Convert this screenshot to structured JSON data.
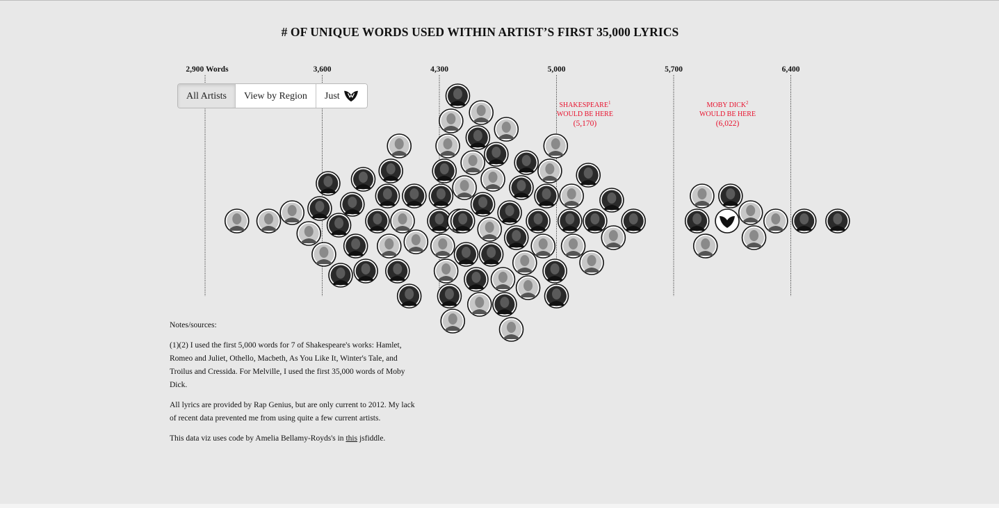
{
  "title": "# OF UNIQUE WORDS USED WITHIN ARTIST’S FIRST 35,000 LYRICS",
  "buttons": {
    "all_artists": "All Artists",
    "view_by_region": "View by Region",
    "just": "Just",
    "just_icon": "wu-tang-logo-icon"
  },
  "notes": {
    "heading": "Notes/sources:",
    "p1": "(1)(2) I used the first 5,000 words for 7 of Shakespeare's works: Hamlet, Romeo and Juliet, Othello, Macbeth, As You Like It, Winter's Tale, and Troilus and Cressida. For Melville, I used the first 35,000 words of Moby Dick.",
    "p2": "All lyrics are provided by Rap Genius, but are only current to 2012. My lack of recent data prevented me from using quite a few current artists.",
    "p3_before": "This data viz uses code by Amelia Bellamy-Royds's in ",
    "p3_link": "this",
    "p3_after": " jsfiddle."
  },
  "colors": {
    "background": "#e8e8e8",
    "annotation": "#e8112d",
    "avatar_dark": "#2a2a2a",
    "avatar_light": "#c8c8c8"
  },
  "chart_data": {
    "type": "scatter",
    "subtype": "beeswarm",
    "title": "# OF UNIQUE WORDS USED WITHIN ARTIST’S FIRST 35,000 LYRICS",
    "xlabel": "",
    "ylabel": "",
    "xlim": [
      2900,
      6970
    ],
    "grid": true,
    "ticks": [
      {
        "value": 2900,
        "label": "2,900 Words"
      },
      {
        "value": 3600,
        "label": "3,600"
      },
      {
        "value": 4300,
        "label": "4,300"
      },
      {
        "value": 5000,
        "label": "5,000"
      },
      {
        "value": 5700,
        "label": "5,700"
      },
      {
        "value": 6400,
        "label": "6,400"
      }
    ],
    "reference_markers": [
      {
        "line1": "SHAKESPEARE",
        "sup": "1",
        "line2": "WOULD BE HERE",
        "value_label": "(5,170)",
        "value": 5170
      },
      {
        "line1": "MOBY DICK",
        "sup": "2",
        "line2": "WOULD BE HERE",
        "value_label": "(6,022)",
        "value": 6022
      }
    ],
    "points": [
      {
        "x": 3090,
        "tone": "l"
      },
      {
        "x": 3280,
        "tone": "l"
      },
      {
        "x": 3420,
        "tone": "l"
      },
      {
        "x": 3520,
        "tone": "l"
      },
      {
        "x": 3585,
        "tone": "d"
      },
      {
        "x": 3610,
        "tone": "l"
      },
      {
        "x": 3635,
        "tone": "d"
      },
      {
        "x": 3700,
        "tone": "d"
      },
      {
        "x": 3710,
        "tone": "d"
      },
      {
        "x": 3780,
        "tone": "d"
      },
      {
        "x": 3800,
        "tone": "d"
      },
      {
        "x": 3845,
        "tone": "d"
      },
      {
        "x": 3860,
        "tone": "d"
      },
      {
        "x": 3930,
        "tone": "d"
      },
      {
        "x": 3990,
        "tone": "d"
      },
      {
        "x": 4000,
        "tone": "l"
      },
      {
        "x": 4010,
        "tone": "d"
      },
      {
        "x": 4050,
        "tone": "d"
      },
      {
        "x": 4060,
        "tone": "l"
      },
      {
        "x": 4080,
        "tone": "l"
      },
      {
        "x": 4120,
        "tone": "d"
      },
      {
        "x": 4150,
        "tone": "d"
      },
      {
        "x": 4160,
        "tone": "l"
      },
      {
        "x": 4300,
        "tone": "d"
      },
      {
        "x": 4310,
        "tone": "d"
      },
      {
        "x": 4320,
        "tone": "l"
      },
      {
        "x": 4330,
        "tone": "d"
      },
      {
        "x": 4340,
        "tone": "l"
      },
      {
        "x": 4350,
        "tone": "l"
      },
      {
        "x": 4360,
        "tone": "d"
      },
      {
        "x": 4370,
        "tone": "l"
      },
      {
        "x": 4380,
        "tone": "l"
      },
      {
        "x": 4410,
        "tone": "d"
      },
      {
        "x": 4420,
        "tone": "l"
      },
      {
        "x": 4440,
        "tone": "d"
      },
      {
        "x": 4450,
        "tone": "l"
      },
      {
        "x": 4460,
        "tone": "d"
      },
      {
        "x": 4500,
        "tone": "l"
      },
      {
        "x": 4520,
        "tone": "d"
      },
      {
        "x": 4530,
        "tone": "d"
      },
      {
        "x": 4540,
        "tone": "l"
      },
      {
        "x": 4550,
        "tone": "l"
      },
      {
        "x": 4560,
        "tone": "d"
      },
      {
        "x": 4600,
        "tone": "l"
      },
      {
        "x": 4610,
        "tone": "d"
      },
      {
        "x": 4620,
        "tone": "l"
      },
      {
        "x": 4640,
        "tone": "d"
      },
      {
        "x": 4680,
        "tone": "l"
      },
      {
        "x": 4690,
        "tone": "d"
      },
      {
        "x": 4700,
        "tone": "l"
      },
      {
        "x": 4720,
        "tone": "d"
      },
      {
        "x": 4730,
        "tone": "l"
      },
      {
        "x": 4760,
        "tone": "d"
      },
      {
        "x": 4790,
        "tone": "d"
      },
      {
        "x": 4810,
        "tone": "l"
      },
      {
        "x": 4820,
        "tone": "d"
      },
      {
        "x": 4830,
        "tone": "l"
      },
      {
        "x": 4890,
        "tone": "d"
      },
      {
        "x": 4920,
        "tone": "l"
      },
      {
        "x": 4940,
        "tone": "d"
      },
      {
        "x": 5000,
        "tone": "d"
      },
      {
        "x": 4960,
        "tone": "l"
      },
      {
        "x": 4990,
        "tone": "d"
      },
      {
        "x": 4995,
        "tone": "l"
      },
      {
        "x": 5080,
        "tone": "d"
      },
      {
        "x": 5090,
        "tone": "l"
      },
      {
        "x": 5100,
        "tone": "l"
      },
      {
        "x": 5190,
        "tone": "d"
      },
      {
        "x": 5210,
        "tone": "l"
      },
      {
        "x": 5230,
        "tone": "d"
      },
      {
        "x": 5330,
        "tone": "d"
      },
      {
        "x": 5340,
        "tone": "l"
      },
      {
        "x": 5460,
        "tone": "d"
      },
      {
        "x": 5840,
        "tone": "d"
      },
      {
        "x": 5870,
        "tone": "l"
      },
      {
        "x": 5890,
        "tone": "l"
      },
      {
        "x": 6020,
        "tone": "w",
        "highlight": true
      },
      {
        "x": 6040,
        "tone": "d"
      },
      {
        "x": 6160,
        "tone": "l"
      },
      {
        "x": 6180,
        "tone": "l"
      },
      {
        "x": 6310,
        "tone": "l"
      },
      {
        "x": 6480,
        "tone": "d"
      },
      {
        "x": 6680,
        "tone": "d"
      }
    ]
  }
}
